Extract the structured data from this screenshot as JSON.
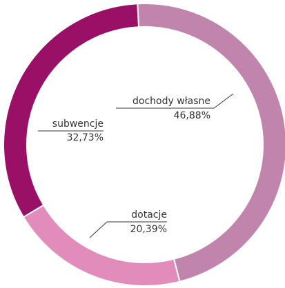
{
  "chart_data": {
    "type": "pie",
    "categories": [
      "dochody własne",
      "dotacje",
      "subwencje"
    ],
    "values": [
      46.88,
      20.39,
      32.73
    ],
    "value_labels": [
      "46,88%",
      "20,39%",
      "32,73%"
    ],
    "colors": [
      "#c084ad",
      "#e28cbc",
      "#9a1066"
    ]
  }
}
